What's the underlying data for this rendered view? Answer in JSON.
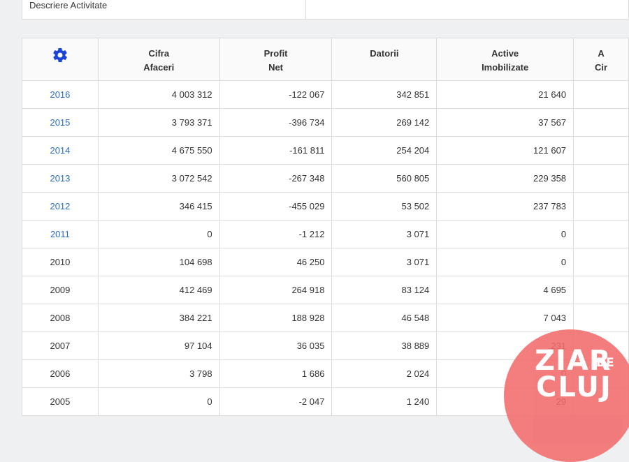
{
  "top": {
    "description_label": "Descriere Activitate"
  },
  "table": {
    "headers": [
      {
        "line1": "Cifra",
        "line2": "Afaceri"
      },
      {
        "line1": "Profit",
        "line2": "Net"
      },
      {
        "line1": "Datorii",
        "line2": ""
      },
      {
        "line1": "Active",
        "line2": "Imobilizate"
      },
      {
        "line1": "A",
        "line2": "Cir"
      }
    ],
    "settings_icon": "gear-icon",
    "rows": [
      {
        "year": "2016",
        "link": true,
        "cifra": "4 003 312",
        "profit": "-122 067",
        "datorii": "342 851",
        "active": "21 640"
      },
      {
        "year": "2015",
        "link": true,
        "cifra": "3 793 371",
        "profit": "-396 734",
        "datorii": "269 142",
        "active": "37 567"
      },
      {
        "year": "2014",
        "link": true,
        "cifra": "4 675 550",
        "profit": "-161 811",
        "datorii": "254 204",
        "active": "121 607"
      },
      {
        "year": "2013",
        "link": true,
        "cifra": "3 072 542",
        "profit": "-267 348",
        "datorii": "560 805",
        "active": "229 358"
      },
      {
        "year": "2012",
        "link": true,
        "cifra": "346 415",
        "profit": "-455 029",
        "datorii": "53 502",
        "active": "237 783"
      },
      {
        "year": "2011",
        "link": true,
        "cifra": "0",
        "profit": "-1 212",
        "datorii": "3 071",
        "active": "0"
      },
      {
        "year": "2010",
        "link": false,
        "cifra": "104 698",
        "profit": "46 250",
        "datorii": "3 071",
        "active": "0"
      },
      {
        "year": "2009",
        "link": false,
        "cifra": "412 469",
        "profit": "264 918",
        "datorii": "83 124",
        "active": "4 695"
      },
      {
        "year": "2008",
        "link": false,
        "cifra": "384 221",
        "profit": "188 928",
        "datorii": "46 548",
        "active": "7 043"
      },
      {
        "year": "2007",
        "link": false,
        "cifra": "97 104",
        "profit": "36 035",
        "datorii": "38 889",
        "active": "231"
      },
      {
        "year": "2006",
        "link": false,
        "cifra": "3 798",
        "profit": "1 686",
        "datorii": "2 024",
        "active": "0"
      },
      {
        "year": "2005",
        "link": false,
        "cifra": "0",
        "profit": "-2 047",
        "datorii": "1 240",
        "active": "29"
      }
    ]
  },
  "watermark": {
    "line1": "ZIAR",
    "small": "DE",
    "line2": "CLUJ",
    "color": "#f26c6c"
  },
  "colors": {
    "link": "#2a6cc5",
    "gear": "#1a44d8"
  }
}
